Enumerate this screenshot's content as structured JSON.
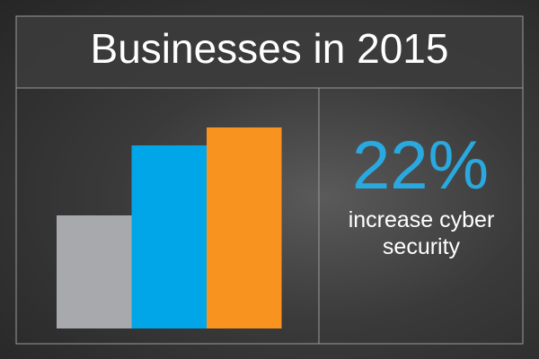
{
  "chart_data": {
    "type": "bar",
    "title": "Businesses in 2015",
    "values": [
      126,
      204,
      224
    ],
    "colors": [
      "#a7a9ac",
      "#00a6e8",
      "#f7931e"
    ],
    "ylim": [
      0,
      240
    ],
    "annotations": [
      "22%",
      "increase cyber security"
    ],
    "annotation_color": "#29a9df"
  }
}
